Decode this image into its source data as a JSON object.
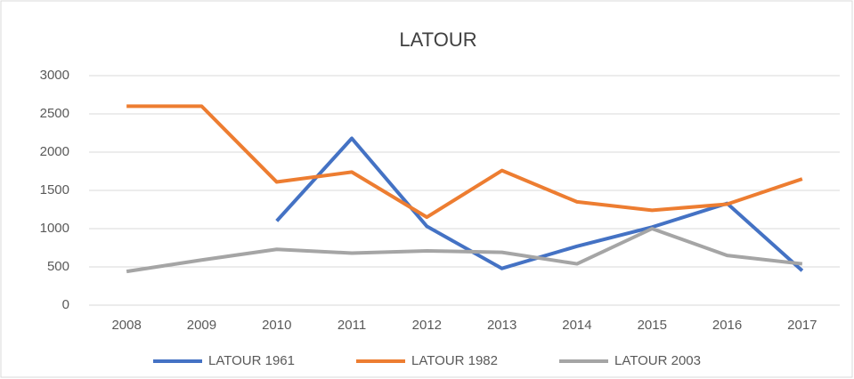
{
  "chart_data": {
    "type": "line",
    "title": "LATOUR",
    "categories": [
      "2008",
      "2009",
      "2010",
      "2011",
      "2012",
      "2013",
      "2014",
      "2015",
      "2016",
      "2017"
    ],
    "series": [
      {
        "name": "LATOUR 1961",
        "color": "#4472c4",
        "values": [
          null,
          null,
          1100,
          2180,
          1030,
          480,
          770,
          1020,
          1330,
          450
        ]
      },
      {
        "name": "LATOUR 1982",
        "color": "#ed7d31",
        "values": [
          2600,
          2600,
          1610,
          1740,
          1150,
          1760,
          1350,
          1240,
          1320,
          1650
        ]
      },
      {
        "name": "LATOUR 2003",
        "color": "#a5a5a5",
        "values": [
          440,
          590,
          730,
          680,
          710,
          690,
          540,
          1000,
          650,
          540
        ]
      }
    ],
    "ylim": [
      0,
      3000
    ],
    "yticks": [
      0,
      500,
      1000,
      1500,
      2000,
      2500,
      3000
    ],
    "grid": true,
    "legend": "bottom"
  }
}
